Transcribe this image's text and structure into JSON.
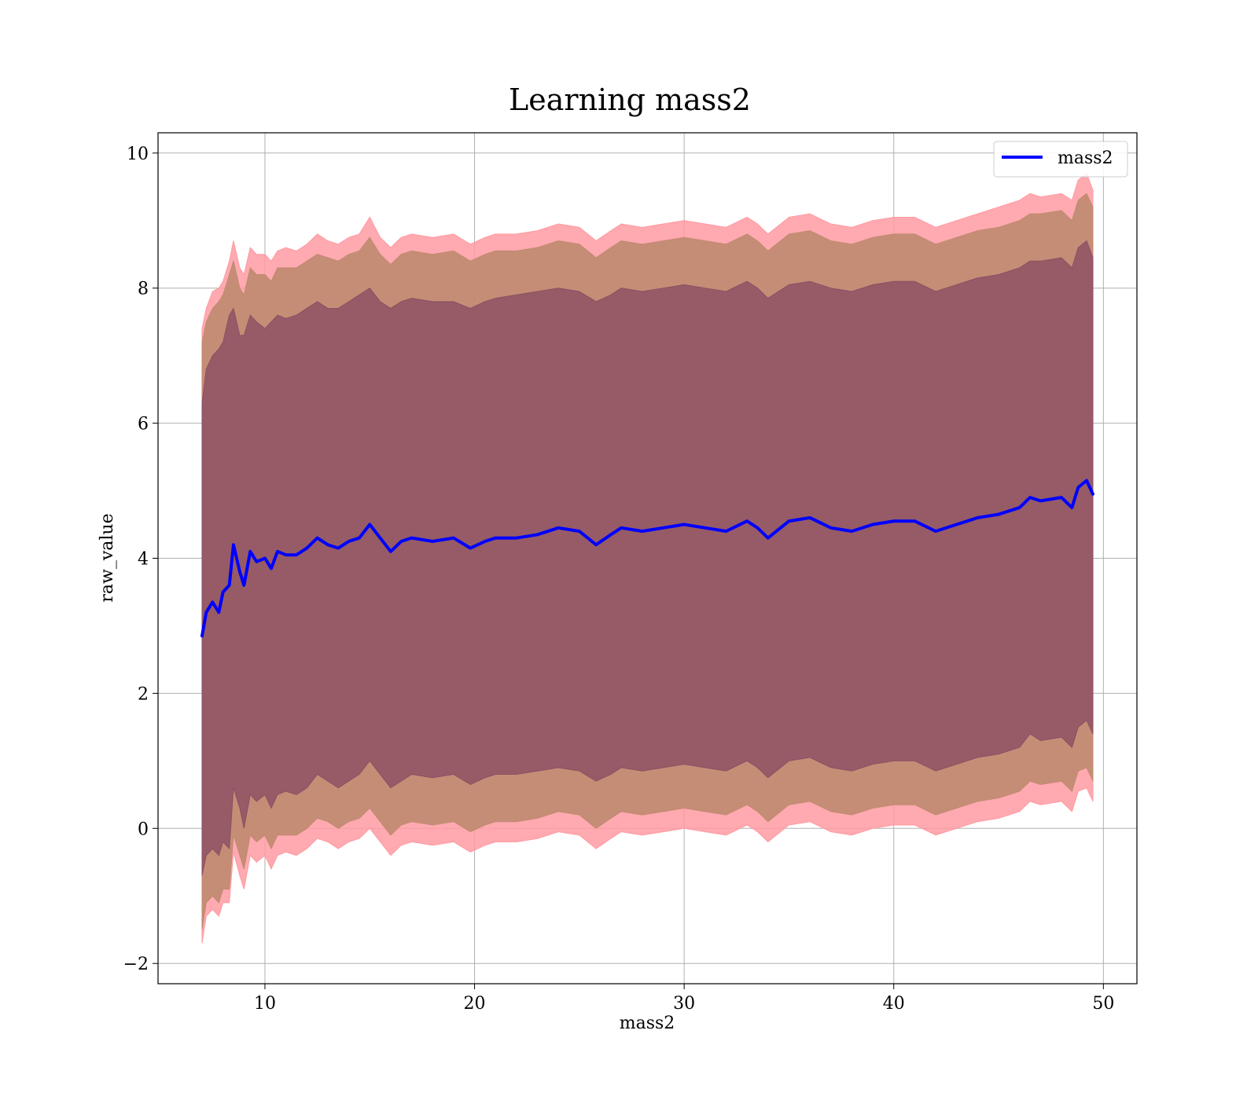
{
  "chart_data": {
    "type": "line",
    "title": "Learning mass2",
    "xlabel": "mass2",
    "ylabel": "raw_value",
    "xlim": [
      4.9,
      51.6
    ],
    "ylim": [
      -2.3,
      10.3
    ],
    "x_ticks": [
      10,
      20,
      30,
      40,
      50
    ],
    "x_tick_labels": [
      "10",
      "20",
      "30",
      "40",
      "50"
    ],
    "y_ticks": [
      -2,
      0,
      2,
      4,
      6,
      8,
      10
    ],
    "y_tick_labels": [
      "−2",
      "0",
      "2",
      "4",
      "6",
      "8",
      "10"
    ],
    "grid": true,
    "legend": {
      "placement": "top-right",
      "entries": [
        "mass2"
      ]
    },
    "colors": {
      "line": "#0000ff",
      "outer_band": "#ff9aa2",
      "middle_band": "#c08a70",
      "inner_band": "#8b5064"
    },
    "series": [
      {
        "name": "mass2",
        "x": [
          7.0,
          7.2,
          7.5,
          7.8,
          8.0,
          8.3,
          8.5,
          8.8,
          9.0,
          9.3,
          9.6,
          10.0,
          10.3,
          10.6,
          11.0,
          11.5,
          12.0,
          12.5,
          13.0,
          13.5,
          14.0,
          14.5,
          15.0,
          15.5,
          16.0,
          16.5,
          17.0,
          18.0,
          19.0,
          19.8,
          20.5,
          21.0,
          22.0,
          23.0,
          24.0,
          25.0,
          25.8,
          26.5,
          27.0,
          28.0,
          29.0,
          30.0,
          31.0,
          32.0,
          33.0,
          33.5,
          34.0,
          35.0,
          36.0,
          37.0,
          38.0,
          39.0,
          40.0,
          41.0,
          42.0,
          43.0,
          44.0,
          45.0,
          46.0,
          46.5,
          47.0,
          48.0,
          48.5,
          48.8,
          49.2,
          49.5
        ],
        "y": [
          2.85,
          3.2,
          3.35,
          3.2,
          3.5,
          3.6,
          4.2,
          3.8,
          3.6,
          4.1,
          3.95,
          4.0,
          3.85,
          4.1,
          4.05,
          4.05,
          4.15,
          4.3,
          4.2,
          4.15,
          4.25,
          4.3,
          4.5,
          4.3,
          4.1,
          4.25,
          4.3,
          4.25,
          4.3,
          4.15,
          4.25,
          4.3,
          4.3,
          4.35,
          4.45,
          4.4,
          4.2,
          4.35,
          4.45,
          4.4,
          4.45,
          4.5,
          4.45,
          4.4,
          4.55,
          4.45,
          4.3,
          4.55,
          4.6,
          4.45,
          4.4,
          4.5,
          4.55,
          4.55,
          4.4,
          4.5,
          4.6,
          4.65,
          4.75,
          4.9,
          4.85,
          4.9,
          4.75,
          5.05,
          5.15,
          4.95
        ]
      }
    ],
    "bands": {
      "inner": {
        "upper": [
          6.3,
          6.8,
          7.0,
          7.1,
          7.2,
          7.6,
          7.7,
          7.3,
          7.3,
          7.6,
          7.5,
          7.4,
          7.5,
          7.6,
          7.55,
          7.6,
          7.7,
          7.8,
          7.7,
          7.7,
          7.8,
          7.9,
          8.0,
          7.8,
          7.7,
          7.8,
          7.85,
          7.8,
          7.8,
          7.7,
          7.8,
          7.85,
          7.9,
          7.95,
          8.0,
          7.95,
          7.8,
          7.9,
          8.0,
          7.95,
          8.0,
          8.05,
          8.0,
          7.95,
          8.1,
          8.0,
          7.85,
          8.05,
          8.1,
          8.0,
          7.95,
          8.05,
          8.1,
          8.1,
          7.95,
          8.05,
          8.15,
          8.2,
          8.3,
          8.4,
          8.4,
          8.45,
          8.3,
          8.6,
          8.7,
          8.45
        ],
        "lower": [
          -0.7,
          -0.4,
          -0.3,
          -0.4,
          -0.2,
          -0.3,
          0.6,
          0.3,
          0.0,
          0.5,
          0.4,
          0.5,
          0.3,
          0.5,
          0.55,
          0.5,
          0.6,
          0.8,
          0.7,
          0.6,
          0.7,
          0.8,
          1.0,
          0.8,
          0.6,
          0.7,
          0.8,
          0.75,
          0.8,
          0.65,
          0.75,
          0.8,
          0.8,
          0.85,
          0.9,
          0.85,
          0.7,
          0.8,
          0.9,
          0.85,
          0.9,
          0.95,
          0.9,
          0.85,
          1.0,
          0.9,
          0.75,
          1.0,
          1.05,
          0.9,
          0.85,
          0.95,
          1.0,
          1.0,
          0.85,
          0.95,
          1.05,
          1.1,
          1.2,
          1.4,
          1.3,
          1.35,
          1.2,
          1.5,
          1.6,
          1.4
        ]
      },
      "middle": {
        "upper": [
          7.2,
          7.5,
          7.7,
          7.8,
          7.9,
          8.2,
          8.4,
          8.0,
          7.9,
          8.3,
          8.2,
          8.2,
          8.1,
          8.3,
          8.3,
          8.3,
          8.4,
          8.5,
          8.45,
          8.4,
          8.5,
          8.55,
          8.75,
          8.5,
          8.35,
          8.5,
          8.55,
          8.5,
          8.55,
          8.4,
          8.5,
          8.55,
          8.55,
          8.6,
          8.7,
          8.65,
          8.45,
          8.6,
          8.7,
          8.65,
          8.7,
          8.75,
          8.7,
          8.65,
          8.8,
          8.7,
          8.55,
          8.8,
          8.85,
          8.7,
          8.65,
          8.75,
          8.8,
          8.8,
          8.65,
          8.75,
          8.85,
          8.9,
          9.0,
          9.1,
          9.1,
          9.15,
          9.0,
          9.3,
          9.4,
          9.2
        ],
        "lower": [
          -1.5,
          -1.1,
          -1.0,
          -1.1,
          -0.9,
          -0.9,
          -0.1,
          -0.4,
          -0.6,
          -0.1,
          -0.2,
          -0.1,
          -0.3,
          -0.1,
          -0.1,
          -0.1,
          0.0,
          0.15,
          0.1,
          0.0,
          0.1,
          0.15,
          0.3,
          0.1,
          -0.1,
          0.05,
          0.1,
          0.05,
          0.1,
          -0.05,
          0.05,
          0.1,
          0.1,
          0.15,
          0.25,
          0.2,
          0.0,
          0.15,
          0.25,
          0.2,
          0.25,
          0.3,
          0.25,
          0.2,
          0.35,
          0.25,
          0.1,
          0.35,
          0.4,
          0.25,
          0.2,
          0.3,
          0.35,
          0.35,
          0.2,
          0.3,
          0.4,
          0.45,
          0.55,
          0.7,
          0.65,
          0.7,
          0.55,
          0.85,
          0.9,
          0.7
        ]
      },
      "outer": {
        "upper": [
          7.4,
          7.7,
          7.95,
          8.0,
          8.1,
          8.4,
          8.7,
          8.3,
          8.2,
          8.6,
          8.5,
          8.5,
          8.4,
          8.55,
          8.6,
          8.55,
          8.65,
          8.8,
          8.7,
          8.65,
          8.75,
          8.8,
          9.05,
          8.75,
          8.6,
          8.75,
          8.8,
          8.75,
          8.8,
          8.65,
          8.75,
          8.8,
          8.8,
          8.85,
          8.95,
          8.9,
          8.7,
          8.85,
          8.95,
          8.9,
          8.95,
          9.0,
          8.95,
          8.9,
          9.05,
          8.95,
          8.8,
          9.05,
          9.1,
          8.95,
          8.9,
          9.0,
          9.05,
          9.05,
          8.9,
          9.0,
          9.1,
          9.2,
          9.3,
          9.4,
          9.35,
          9.4,
          9.3,
          9.6,
          9.7,
          9.45
        ],
        "lower": [
          -1.7,
          -1.3,
          -1.2,
          -1.3,
          -1.1,
          -1.1,
          -0.35,
          -0.7,
          -0.9,
          -0.4,
          -0.5,
          -0.4,
          -0.6,
          -0.4,
          -0.35,
          -0.4,
          -0.3,
          -0.15,
          -0.2,
          -0.3,
          -0.2,
          -0.15,
          0.0,
          -0.2,
          -0.4,
          -0.25,
          -0.2,
          -0.25,
          -0.2,
          -0.35,
          -0.25,
          -0.2,
          -0.2,
          -0.15,
          -0.05,
          -0.1,
          -0.3,
          -0.15,
          -0.05,
          -0.1,
          -0.05,
          0.0,
          -0.05,
          -0.1,
          0.05,
          -0.05,
          -0.2,
          0.05,
          0.1,
          -0.05,
          -0.1,
          0.0,
          0.05,
          0.05,
          -0.1,
          0.0,
          0.1,
          0.15,
          0.25,
          0.4,
          0.35,
          0.4,
          0.25,
          0.55,
          0.6,
          0.4
        ]
      }
    }
  }
}
